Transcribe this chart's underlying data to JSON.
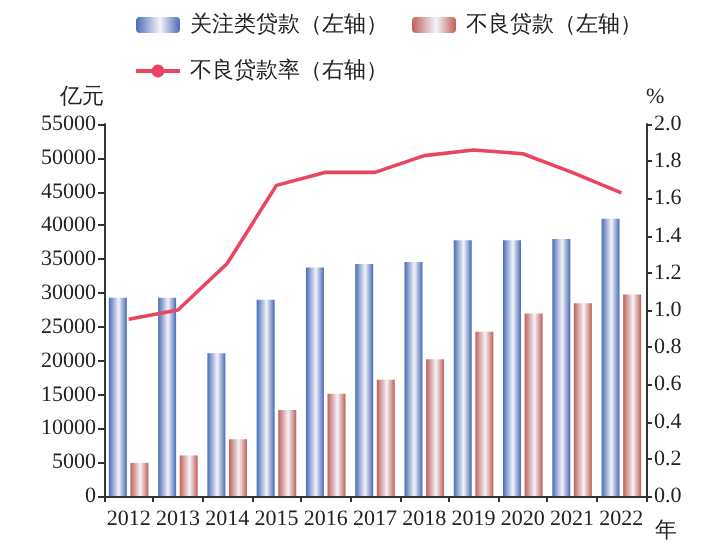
{
  "chart_data": {
    "type": "bar",
    "ylabel": "亿元",
    "y2label": "%",
    "xlabel": "年",
    "categories": [
      "2012",
      "2013",
      "2014",
      "2015",
      "2016",
      "2017",
      "2018",
      "2019",
      "2020",
      "2021",
      "2022"
    ],
    "series": [
      {
        "name": "关注类贷款（左轴）",
        "color": "#4a6bb8",
        "values": [
          29300,
          29300,
          21100,
          29000,
          33800,
          34300,
          34600,
          37800,
          37800,
          38000,
          41000
        ]
      },
      {
        "name": "不良贷款（左轴）",
        "color": "#c0605a",
        "values": [
          4900,
          6000,
          8400,
          12700,
          15100,
          17200,
          20200,
          24300,
          27000,
          28500,
          29800
        ]
      },
      {
        "name": "不良贷款率（右轴）",
        "type": "line",
        "axis": "y2",
        "color": "#ea4560",
        "marker": "none",
        "values": [
          0.95,
          1.0,
          1.25,
          1.67,
          1.74,
          1.74,
          1.83,
          1.86,
          1.84,
          1.74,
          1.63
        ]
      }
    ],
    "ylim": [
      0,
      55000
    ],
    "yticks": [
      0,
      5000,
      10000,
      15000,
      20000,
      25000,
      30000,
      35000,
      40000,
      45000,
      50000,
      55000
    ],
    "y2lim": [
      0,
      2.0
    ],
    "y2ticks": [
      {
        "value": 0,
        "label": "0.0"
      },
      {
        "value": 0.2,
        "label": "0.2"
      },
      {
        "value": 0.4,
        "label": "0.4"
      },
      {
        "value": 0.6,
        "label": "0.6"
      },
      {
        "value": 0.8,
        "label": "0.8"
      },
      {
        "value": 1.0,
        "label": "1.0"
      },
      {
        "value": 1.2,
        "label": "1.2"
      },
      {
        "value": 1.4,
        "label": "1.4"
      },
      {
        "value": 1.6,
        "label": "1.6"
      },
      {
        "value": 1.8,
        "label": "1.8"
      },
      {
        "value": 2.0,
        "label": "2.0"
      }
    ],
    "grid": false,
    "legend": "top"
  }
}
